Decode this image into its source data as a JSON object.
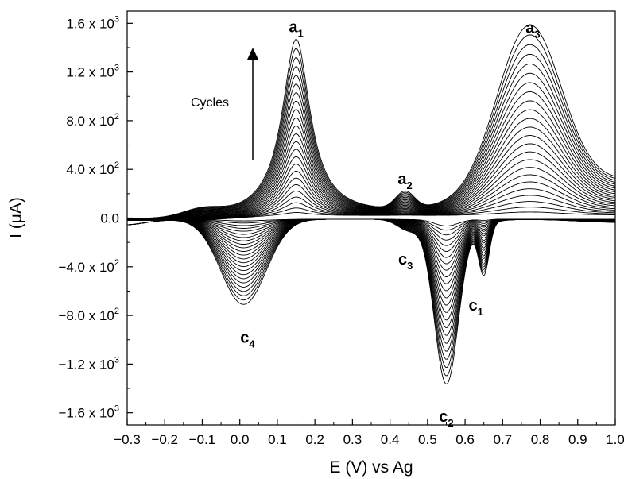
{
  "chart_data": {
    "type": "line",
    "title": "",
    "xlabel": "E (V) vs Ag",
    "ylabel": "I (μA)",
    "xlim": [
      -0.3,
      1.0
    ],
    "ylim": [
      -1700,
      1700
    ],
    "x_ticks": [
      "−0.3",
      "−0.2",
      "−0.1",
      "0.0",
      "0.1",
      "0.2",
      "0.3",
      "0.4",
      "0.5",
      "0.6",
      "0.7",
      "0.8",
      "0.9",
      "1.0"
    ],
    "x_tick_values": [
      -0.3,
      -0.2,
      -0.1,
      0.0,
      0.1,
      0.2,
      0.3,
      0.4,
      0.5,
      0.6,
      0.7,
      0.8,
      0.9,
      1.0
    ],
    "y_ticks": [
      {
        "value": 1600,
        "mant": "1.6 x 10",
        "exp": "3"
      },
      {
        "value": 1200,
        "mant": "1.2 x 10",
        "exp": "3"
      },
      {
        "value": 800,
        "mant": "8.0 x 10",
        "exp": "2"
      },
      {
        "value": 400,
        "mant": "4.0 x 10",
        "exp": "2"
      },
      {
        "value": 0,
        "mant": "0.0",
        "exp": ""
      },
      {
        "value": -400,
        "mant": "−4.0 x 10",
        "exp": "2"
      },
      {
        "value": -800,
        "mant": "−8.0 x 10",
        "exp": "2"
      },
      {
        "value": -1200,
        "mant": "−1.2 x 10",
        "exp": "3"
      },
      {
        "value": -1600,
        "mant": "−1.6 x 10",
        "exp": "3"
      }
    ],
    "num_cycles": 24,
    "series_note": "Multiple overlaid cyclic voltammetry cycles; peak currents grow with each cycle",
    "last_cycle_peaks": [
      {
        "label": "a",
        "sub": "1",
        "x": 0.15,
        "y": 1450
      },
      {
        "label": "a",
        "sub": "2",
        "x": 0.44,
        "y": 200
      },
      {
        "label": "a",
        "sub": "3",
        "x": 0.77,
        "y": 1410
      },
      {
        "label": "c",
        "sub": "1",
        "x": 0.65,
        "y": -500
      },
      {
        "label": "c",
        "sub": "2",
        "x": 0.55,
        "y": -1380
      },
      {
        "label": "c",
        "sub": "3",
        "x": 0.45,
        "y": -200
      },
      {
        "label": "c",
        "sub": "4",
        "x": 0.01,
        "y": -730
      }
    ],
    "annotation": "Cycles",
    "grid": false,
    "line_color": "#000000"
  }
}
